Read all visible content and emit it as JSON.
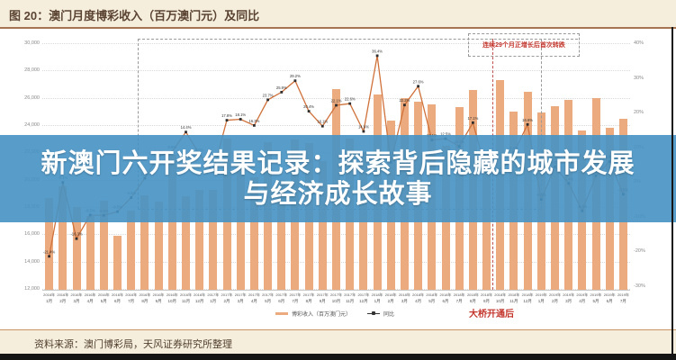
{
  "header": {
    "title": "图 20：澳门月度博彩收入（百万澳门元）及同比"
  },
  "overlay": {
    "line1": "新澳门六开奖结果记录：探索背后隐藏的城市发展",
    "line2": "与经济成长故事"
  },
  "annotations": {
    "growth_note": "连续29个月正增长后首次转跌",
    "bridge_note": "大桥开通后"
  },
  "legend": [
    {
      "label": "博彩收入（百万澳门元）",
      "color": "#ecab7e"
    },
    {
      "label": "同比",
      "color": "#333333"
    }
  ],
  "footer": {
    "source": "资料来源：澳门博彩局，天风证券研究所整理"
  },
  "colors": {
    "bar": "#ecab7e",
    "line": "#d0713a",
    "marker": "#2e2e2e",
    "banner": "#4692c4",
    "accent_red": "#c3352b",
    "header_bg": "#f6eedd"
  },
  "chart_data": {
    "type": "bar+line",
    "title": "澳门月度博彩收入（百万澳门元）及同比",
    "categories": [
      "2016年1月",
      "2016年2月",
      "2016年3月",
      "2016年4月",
      "2016年5月",
      "2016年6月",
      "2016年7月",
      "2016年8月",
      "2016年9月",
      "2016年10月",
      "2016年11月",
      "2016年12月",
      "2017年1月",
      "2017年2月",
      "2017年3月",
      "2017年4月",
      "2017年5月",
      "2017年6月",
      "2017年7月",
      "2017年8月",
      "2017年9月",
      "2017年10月",
      "2017年11月",
      "2017年12月",
      "2018年1月",
      "2018年2月",
      "2018年3月",
      "2018年4月",
      "2018年5月",
      "2018年6月",
      "2018年7月",
      "2018年8月",
      "2018年9月",
      "2018年10月",
      "2018年11月",
      "2018年12月",
      "2019年1月",
      "2019年2月",
      "2019年3月",
      "2019年4月",
      "2019年5月",
      "2019年6月",
      "2019年7月"
    ],
    "series": [
      {
        "name": "博彩收入（百万澳门元）",
        "type": "bar",
        "axis": "left",
        "values": [
          18674,
          19521,
          17980,
          17340,
          18443,
          15885,
          17771,
          18837,
          18400,
          21818,
          18789,
          19235,
          19255,
          22992,
          21232,
          20164,
          22744,
          19992,
          22965,
          22676,
          21363,
          26630,
          23038,
          22041,
          26265,
          24312,
          25952,
          25735,
          25488,
          22490,
          25327,
          26559,
          21952,
          27328,
          24995,
          26468,
          24942,
          25370,
          25840,
          23588,
          25952,
          23812,
          24453
        ]
      },
      {
        "name": "同比",
        "type": "line",
        "axis": "right",
        "values": [
          -21.4,
          -0.1,
          -16.3,
          -9.5,
          -9.6,
          -8.5,
          -4.5,
          1.1,
          7.4,
          8.8,
          14.4,
          8.0,
          3.1,
          17.8,
          18.1,
          16.3,
          23.7,
          25.9,
          29.2,
          20.4,
          16.1,
          22.1,
          22.6,
          14.6,
          36.4,
          5.7,
          22.2,
          27.6,
          12.1,
          12.5,
          10.3,
          17.1,
          2.8,
          2.6,
          8.5,
          16.6,
          -5.0,
          4.4,
          -0.4,
          -8.3,
          1.8,
          5.9,
          -3.5
        ]
      }
    ],
    "left_axis": {
      "min": 12000,
      "max": 30000,
      "ticks": [
        {
          "v": 30000,
          "label": "30,000"
        },
        {
          "v": 28000,
          "label": "28,000"
        },
        {
          "v": 26000,
          "label": "26,000"
        },
        {
          "v": 24000,
          "label": "24,000"
        },
        {
          "v": 22000,
          "label": "22,000"
        },
        {
          "v": 20000,
          "label": "20,000"
        },
        {
          "v": 18000,
          "label": "18,000"
        },
        {
          "v": 16000,
          "label": "16,000"
        },
        {
          "v": 14000,
          "label": "14,000"
        },
        {
          "v": 12000,
          "label": "12,000"
        }
      ]
    },
    "right_axis": {
      "min": -30,
      "max": 40,
      "ticks": [
        {
          "v": 40,
          "label": "40%"
        },
        {
          "v": 30,
          "label": "30%"
        },
        {
          "v": 20,
          "label": "20%"
        },
        {
          "v": 10,
          "label": "10%"
        },
        {
          "v": 0,
          "label": "0%"
        },
        {
          "v": -10,
          "label": "-10%"
        },
        {
          "v": -20,
          "label": "-20%"
        },
        {
          "v": -30,
          "label": "-30%"
        }
      ]
    },
    "legend_position": "bottom",
    "grid": true,
    "markers": {
      "growth_start_index": 7.0,
      "growth_end_index": 36.5,
      "bridge_index": 32.9
    }
  }
}
